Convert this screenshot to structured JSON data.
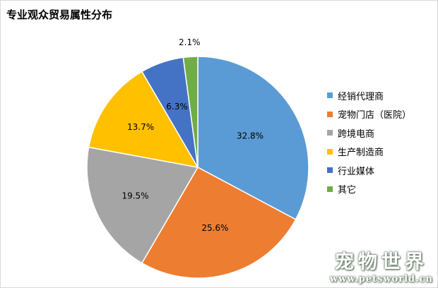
{
  "chart_data": {
    "type": "pie",
    "title": "专业观众贸易属性分布",
    "legend_position": "right",
    "series": [
      {
        "name": "经销代理商",
        "value": 32.8,
        "label": "32.8%",
        "color": "#5b9bd5"
      },
      {
        "name": "宠物门店（医院）",
        "value": 25.6,
        "label": "25.6%",
        "color": "#ed7d31"
      },
      {
        "name": "跨境电商",
        "value": 19.5,
        "label": "19.5%",
        "color": "#a5a5a5"
      },
      {
        "name": "生产制造商",
        "value": 13.7,
        "label": "13.7%",
        "color": "#ffc000"
      },
      {
        "name": "行业媒体",
        "value": 6.3,
        "label": "6.3%",
        "color": "#4472c4"
      },
      {
        "name": "其它",
        "value": 2.1,
        "label": "2.1%",
        "color": "#70ad47"
      }
    ]
  },
  "watermark": {
    "name": "宠物世界",
    "url": "www.petsworld.cn"
  }
}
